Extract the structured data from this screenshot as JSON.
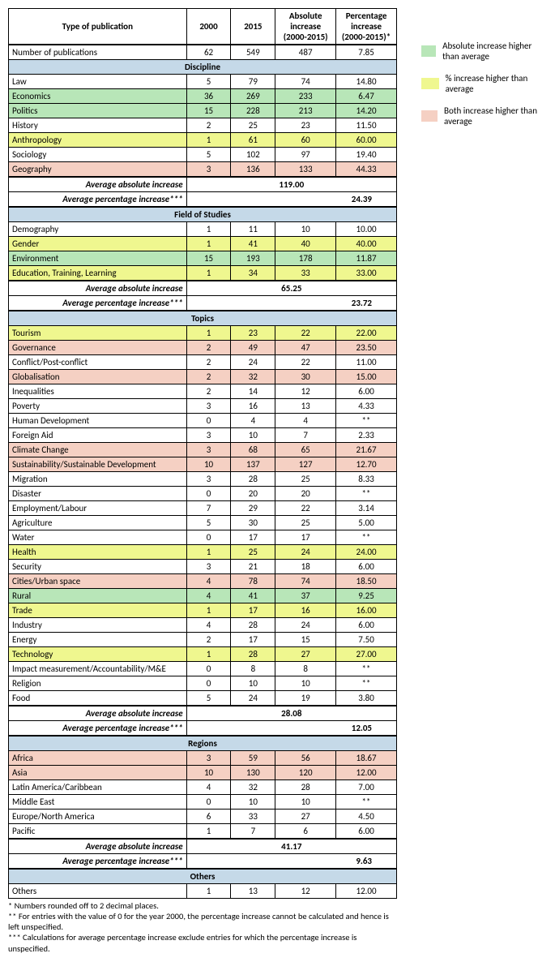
{
  "colors": {
    "section_header": "#c5d9e8",
    "green": "#b8e6b8",
    "yellow": "#eff78f",
    "peach": "#f5d0c3",
    "border": "#000000",
    "bg": "#ffffff"
  },
  "headers": {
    "type": "Type of publication",
    "c2000": "2000",
    "c2015": "2015",
    "abs": "Absolute increase (2000-2015)",
    "pct": "Percentage increase (2000-2015)*"
  },
  "top_row": {
    "label": "Number of publications",
    "c2000": "62",
    "c2015": "549",
    "abs": "487",
    "pct": "7.85"
  },
  "sections": [
    {
      "title": "Discipline",
      "rows": [
        {
          "label": "Law",
          "c2000": "5",
          "c2015": "79",
          "abs": "74",
          "pct": "14.80",
          "hl": ""
        },
        {
          "label": "Economics",
          "c2000": "36",
          "c2015": "269",
          "abs": "233",
          "pct": "6.47",
          "hl": "green"
        },
        {
          "label": "Politics",
          "c2000": "15",
          "c2015": "228",
          "abs": "213",
          "pct": "14.20",
          "hl": "green"
        },
        {
          "label": "History",
          "c2000": "2",
          "c2015": "25",
          "abs": "23",
          "pct": "11.50",
          "hl": ""
        },
        {
          "label": "Anthropology",
          "c2000": "1",
          "c2015": "61",
          "abs": "60",
          "pct": "60.00",
          "hl": "yellow"
        },
        {
          "label": "Sociology",
          "c2000": "5",
          "c2015": "102",
          "abs": "97",
          "pct": "19.40",
          "hl": ""
        },
        {
          "label": "Geography",
          "c2000": "3",
          "c2015": "136",
          "abs": "133",
          "pct": "44.33",
          "hl": "peach"
        }
      ],
      "avg_abs": {
        "label": "Average absolute increase",
        "val": "119.00"
      },
      "avg_pct": {
        "label": "Average percentage increase***",
        "val": "24.39"
      }
    },
    {
      "title": "Field of Studies",
      "rows": [
        {
          "label": "Demography",
          "c2000": "1",
          "c2015": "11",
          "abs": "10",
          "pct": "10.00",
          "hl": ""
        },
        {
          "label": "Gender",
          "c2000": "1",
          "c2015": "41",
          "abs": "40",
          "pct": "40.00",
          "hl": "yellow"
        },
        {
          "label": "Environment",
          "c2000": "15",
          "c2015": "193",
          "abs": "178",
          "pct": "11.87",
          "hl": "green"
        },
        {
          "label": "Education, Training, Learning",
          "c2000": "1",
          "c2015": "34",
          "abs": "33",
          "pct": "33.00",
          "hl": "yellow"
        }
      ],
      "avg_abs": {
        "label": "Average absolute increase",
        "val": "65.25"
      },
      "avg_pct": {
        "label": "Average percentage increase***",
        "val": "23.72"
      }
    },
    {
      "title": "Topics",
      "rows": [
        {
          "label": "Tourism",
          "c2000": "1",
          "c2015": "23",
          "abs": "22",
          "pct": "22.00",
          "hl": "yellow"
        },
        {
          "label": "Governance",
          "c2000": "2",
          "c2015": "49",
          "abs": "47",
          "pct": "23.50",
          "hl": "peach"
        },
        {
          "label": "Conflict/Post-conflict",
          "c2000": "2",
          "c2015": "24",
          "abs": "22",
          "pct": "11.00",
          "hl": ""
        },
        {
          "label": "Globalisation",
          "c2000": "2",
          "c2015": "32",
          "abs": "30",
          "pct": "15.00",
          "hl": "peach"
        },
        {
          "label": "Inequalities",
          "c2000": "2",
          "c2015": "14",
          "abs": "12",
          "pct": "6.00",
          "hl": ""
        },
        {
          "label": "Poverty",
          "c2000": "3",
          "c2015": "16",
          "abs": "13",
          "pct": "4.33",
          "hl": ""
        },
        {
          "label": "Human Development",
          "c2000": "0",
          "c2015": "4",
          "abs": "4",
          "pct": "**",
          "hl": ""
        },
        {
          "label": "Foreign Aid",
          "c2000": "3",
          "c2015": "10",
          "abs": "7",
          "pct": "2.33",
          "hl": ""
        },
        {
          "label": "Climate Change",
          "c2000": "3",
          "c2015": "68",
          "abs": "65",
          "pct": "21.67",
          "hl": "peach"
        },
        {
          "label": "Sustainability/Sustainable Development",
          "c2000": "10",
          "c2015": "137",
          "abs": "127",
          "pct": "12.70",
          "hl": "peach"
        },
        {
          "label": "Migration",
          "c2000": "3",
          "c2015": "28",
          "abs": "25",
          "pct": "8.33",
          "hl": ""
        },
        {
          "label": "Disaster",
          "c2000": "0",
          "c2015": "20",
          "abs": "20",
          "pct": "**",
          "hl": ""
        },
        {
          "label": "Employment/Labour",
          "c2000": "7",
          "c2015": "29",
          "abs": "22",
          "pct": "3.14",
          "hl": ""
        },
        {
          "label": "Agriculture",
          "c2000": "5",
          "c2015": "30",
          "abs": "25",
          "pct": "5.00",
          "hl": ""
        },
        {
          "label": "Water",
          "c2000": "0",
          "c2015": "17",
          "abs": "17",
          "pct": "**",
          "hl": ""
        },
        {
          "label": "Health",
          "c2000": "1",
          "c2015": "25",
          "abs": "24",
          "pct": "24.00",
          "hl": "yellow"
        },
        {
          "label": "Security",
          "c2000": "3",
          "c2015": "21",
          "abs": "18",
          "pct": "6.00",
          "hl": ""
        },
        {
          "label": "Cities/Urban space",
          "c2000": "4",
          "c2015": "78",
          "abs": "74",
          "pct": "18.50",
          "hl": "peach"
        },
        {
          "label": "Rural",
          "c2000": "4",
          "c2015": "41",
          "abs": "37",
          "pct": "9.25",
          "hl": "green"
        },
        {
          "label": "Trade",
          "c2000": "1",
          "c2015": "17",
          "abs": "16",
          "pct": "16.00",
          "hl": "yellow"
        },
        {
          "label": "Industry",
          "c2000": "4",
          "c2015": "28",
          "abs": "24",
          "pct": "6.00",
          "hl": ""
        },
        {
          "label": "Energy",
          "c2000": "2",
          "c2015": "17",
          "abs": "15",
          "pct": "7.50",
          "hl": ""
        },
        {
          "label": "Technology",
          "c2000": "1",
          "c2015": "28",
          "abs": "27",
          "pct": "27.00",
          "hl": "yellow"
        },
        {
          "label": "Impact measurement/Accountability/M&E",
          "c2000": "0",
          "c2015": "8",
          "abs": "8",
          "pct": "**",
          "hl": ""
        },
        {
          "label": "Religion",
          "c2000": "0",
          "c2015": "10",
          "abs": "10",
          "pct": "**",
          "hl": ""
        },
        {
          "label": "Food",
          "c2000": "5",
          "c2015": "24",
          "abs": "19",
          "pct": "3.80",
          "hl": ""
        }
      ],
      "avg_abs": {
        "label": "Average absolute increase",
        "val": "28.08"
      },
      "avg_pct": {
        "label": "Average percentage increase***",
        "val": "12.05"
      }
    },
    {
      "title": "Regions",
      "rows": [
        {
          "label": "Africa",
          "c2000": "3",
          "c2015": "59",
          "abs": "56",
          "pct": "18.67",
          "hl": "peach"
        },
        {
          "label": "Asia",
          "c2000": "10",
          "c2015": "130",
          "abs": "120",
          "pct": "12.00",
          "hl": "peach"
        },
        {
          "label": "Latin America/Caribbean",
          "c2000": "4",
          "c2015": "32",
          "abs": "28",
          "pct": "7.00",
          "hl": ""
        },
        {
          "label": "Middle East",
          "c2000": "0",
          "c2015": "10",
          "abs": "10",
          "pct": "**",
          "hl": ""
        },
        {
          "label": "Europe/North America",
          "c2000": "6",
          "c2015": "33",
          "abs": "27",
          "pct": "4.50",
          "hl": ""
        },
        {
          "label": "Pacific",
          "c2000": "1",
          "c2015": "7",
          "abs": "6",
          "pct": "6.00",
          "hl": ""
        }
      ],
      "avg_abs": {
        "label": "Average absolute increase",
        "val": "41.17"
      },
      "avg_pct": {
        "label": "Average percentage increase***",
        "val": "9.63"
      }
    },
    {
      "title": "Others",
      "rows": [
        {
          "label": "Others",
          "c2000": "1",
          "c2015": "13",
          "abs": "12",
          "pct": "12.00",
          "hl": ""
        }
      ]
    }
  ],
  "legend": [
    {
      "color": "#b8e6b8",
      "label": "Absolute increase higher than average"
    },
    {
      "color": "#eff78f",
      "label": "% increase higher than average"
    },
    {
      "color": "#f5d0c3",
      "label": "Both increase higher than average"
    }
  ],
  "footnotes": [
    "* Numbers rounded off to 2 decimal places.",
    "** For entries with the value of 0 for the year 2000, the percentage increase cannot be calculated and hence is left unspecified.",
    "*** Calculations for average percentage increase exclude entries for which the percentage increase is unspecified."
  ]
}
